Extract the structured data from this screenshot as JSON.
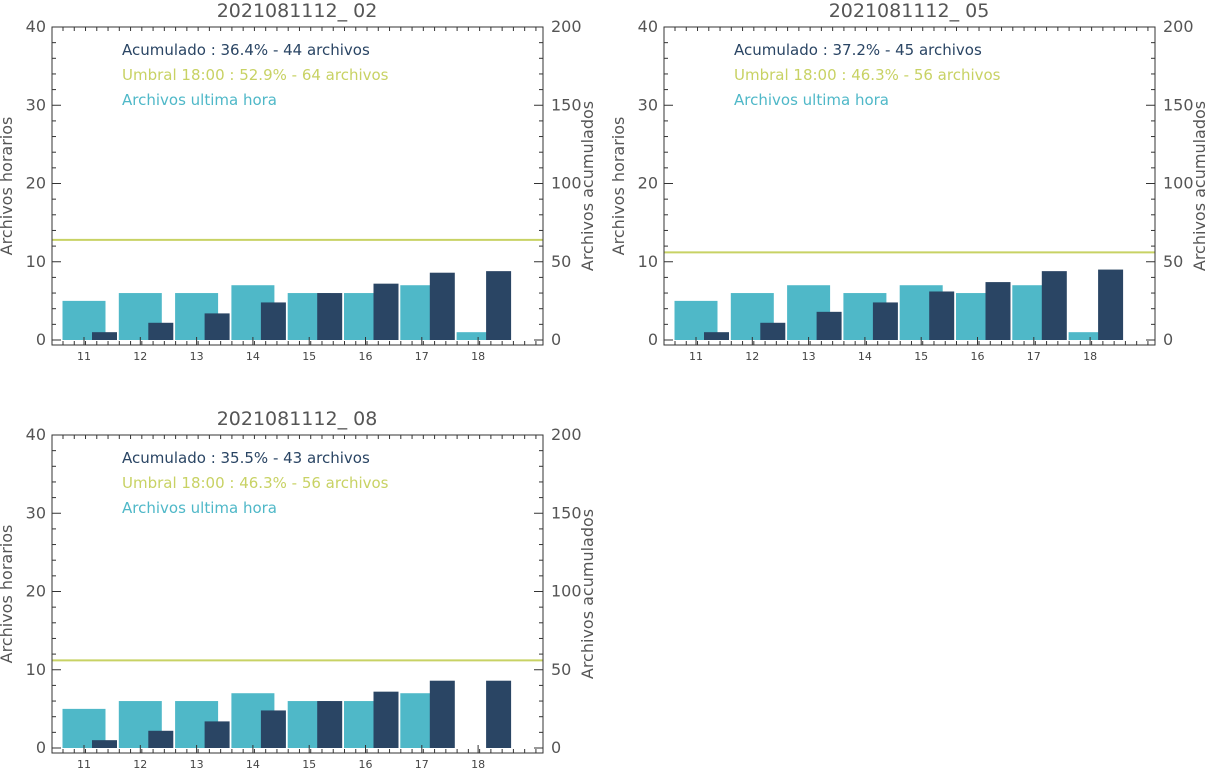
{
  "colors": {
    "hourly": "#4fb8c8",
    "cumulative": "#2a4564",
    "threshold": "#c8d264",
    "axis": "#333333",
    "text": "#555555"
  },
  "chart_data": [
    {
      "type": "bar",
      "title": "2021081112_ 02",
      "ylabel_left": "Archivos horarios",
      "ylabel_right": "Archivos acumulados",
      "categories": [
        "11",
        "12",
        "13",
        "14",
        "15",
        "16",
        "17",
        "18"
      ],
      "ylim_left": [
        0,
        40
      ],
      "ylim_right": [
        0,
        200
      ],
      "yticks_left": [
        "0",
        "10",
        "20",
        "30",
        "40"
      ],
      "yticks_right": [
        "0",
        "50",
        "100",
        "150",
        "200"
      ],
      "series": [
        {
          "name": "Archivos ultima hora",
          "axis": "left",
          "values": [
            5,
            6,
            6,
            7,
            6,
            6,
            7,
            1
          ]
        },
        {
          "name": "Acumulado",
          "axis": "right",
          "values": [
            5,
            11,
            17,
            24,
            30,
            36,
            43,
            44
          ]
        }
      ],
      "threshold_right": 64,
      "legend": {
        "cumulative": "Acumulado : 36.4% - 44 archivos",
        "threshold": "Umbral 18:00 : 52.9% - 64 archivos",
        "hourly": "Archivos ultima hora"
      }
    },
    {
      "type": "bar",
      "title": "2021081112_ 05",
      "ylabel_left": "Archivos horarios",
      "ylabel_right": "Archivos acumulados",
      "categories": [
        "11",
        "12",
        "13",
        "14",
        "15",
        "16",
        "17",
        "18"
      ],
      "ylim_left": [
        0,
        40
      ],
      "ylim_right": [
        0,
        200
      ],
      "yticks_left": [
        "0",
        "10",
        "20",
        "30",
        "40"
      ],
      "yticks_right": [
        "0",
        "50",
        "100",
        "150",
        "200"
      ],
      "series": [
        {
          "name": "Archivos ultima hora",
          "axis": "left",
          "values": [
            5,
            6,
            7,
            6,
            7,
            6,
            7,
            1
          ]
        },
        {
          "name": "Acumulado",
          "axis": "right",
          "values": [
            5,
            11,
            18,
            24,
            31,
            37,
            44,
            45
          ]
        }
      ],
      "threshold_right": 56,
      "legend": {
        "cumulative": "Acumulado : 37.2% - 45 archivos",
        "threshold": "Umbral 18:00 : 46.3% - 56 archivos",
        "hourly": "Archivos ultima hora"
      }
    },
    {
      "type": "bar",
      "title": "2021081112_ 08",
      "ylabel_left": "Archivos horarios",
      "ylabel_right": "Archivos acumulados",
      "categories": [
        "11",
        "12",
        "13",
        "14",
        "15",
        "16",
        "17",
        "18"
      ],
      "ylim_left": [
        0,
        40
      ],
      "ylim_right": [
        0,
        200
      ],
      "yticks_left": [
        "0",
        "10",
        "20",
        "30",
        "40"
      ],
      "yticks_right": [
        "0",
        "50",
        "100",
        "150",
        "200"
      ],
      "series": [
        {
          "name": "Archivos ultima hora",
          "axis": "left",
          "values": [
            5,
            6,
            6,
            7,
            6,
            6,
            7,
            0
          ]
        },
        {
          "name": "Acumulado",
          "axis": "right",
          "values": [
            5,
            11,
            17,
            24,
            30,
            36,
            43,
            43
          ]
        }
      ],
      "threshold_right": 56,
      "legend": {
        "cumulative": "Acumulado : 35.5% - 43 archivos",
        "threshold": "Umbral 18:00 : 46.3% - 56 archivos",
        "hourly": "Archivos ultima hora"
      }
    }
  ]
}
